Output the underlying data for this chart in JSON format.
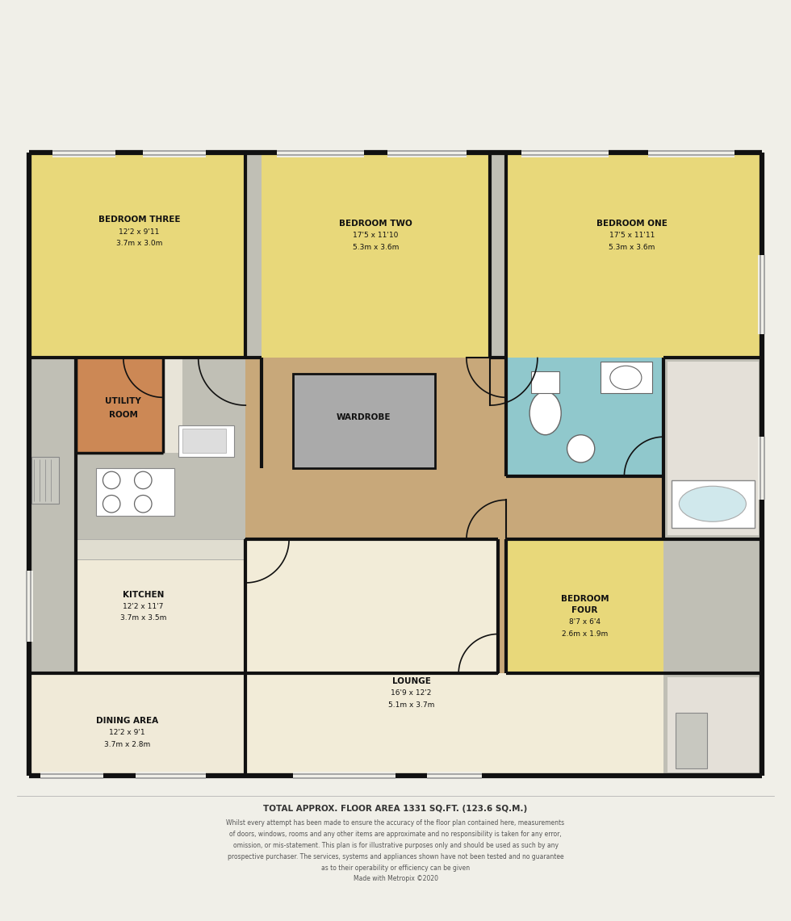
{
  "colors": {
    "bg": "#f0efe8",
    "bedroom_yellow": "#e8d87a",
    "hallway_brown": "#c8a87a",
    "kitchen_cream": "#f0ead8",
    "utility_orange": "#cc8855",
    "bathroom_blue": "#90c8cc",
    "wardrobe_gray": "#aaaaaa",
    "outside_gray": "#c0bfb5",
    "wall": "#111111",
    "white": "#ffffff",
    "fixture_gray": "#cccccc",
    "bath_blue": "#d0e8ec",
    "light_cream": "#f2ecd8"
  },
  "footer_title": "TOTAL APPROX. FLOOR AREA 1331 SQ.FT. (123.6 SQ.M.)",
  "footer_lines": [
    "Whilst every attempt has been made to ensure the accuracy of the floor plan contained here, measurements",
    "of doors, windows, rooms and any other items are approximate and no responsibility is taken for any error,",
    "omission, or mis-statement. This plan is for illustrative purposes only and should be used as such by any",
    "prospective purchaser. The services, systems and appliances shown have not been tested and no guarantee",
    "as to their operability or efficiency can be given",
    "Made with Metropix ©2020"
  ]
}
